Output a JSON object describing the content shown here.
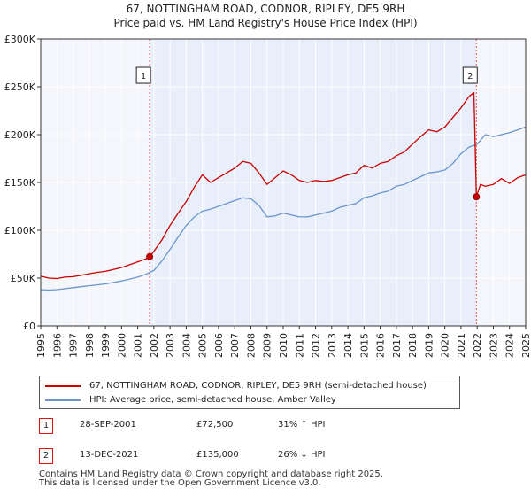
{
  "header": {
    "title_line1": "67, NOTTINGHAM ROAD, CODNOR, RIPLEY, DE5 9RH",
    "title_line2": "Price paid vs. HM Land Registry's House Price Index (HPI)"
  },
  "colors": {
    "property": "#cc0000",
    "hpi": "#6b96cc",
    "shade": "#e8eefa",
    "marker_line": "#e05050"
  },
  "chart_data": {
    "type": "line",
    "title": "Price paid vs. HM Land Registry's House Price Index (HPI)",
    "xlabel": "",
    "ylabel": "",
    "xlim": [
      1995,
      2025
    ],
    "ylim": [
      0,
      300000
    ],
    "y_ticks": [
      0,
      50000,
      100000,
      150000,
      200000,
      250000,
      300000
    ],
    "y_tick_labels": [
      "£0",
      "£50K",
      "£100K",
      "£150K",
      "£200K",
      "£250K",
      "£300K"
    ],
    "x_ticks": [
      1995,
      1996,
      1997,
      1998,
      1999,
      2000,
      2001,
      2002,
      2003,
      2004,
      2005,
      2006,
      2007,
      2008,
      2009,
      2010,
      2011,
      2012,
      2013,
      2014,
      2015,
      2016,
      2017,
      2018,
      2019,
      2020,
      2021,
      2022,
      2023,
      2024,
      2025
    ],
    "x_tick_labels": [
      "1995",
      "1996",
      "1997",
      "1998",
      "1999",
      "2000",
      "2001",
      "2002",
      "2003",
      "2004",
      "2005",
      "2006",
      "2007",
      "2008",
      "2009",
      "2010",
      "2011",
      "2012",
      "2013",
      "2014",
      "2015",
      "2016",
      "2017",
      "2018",
      "2019",
      "2020",
      "2021",
      "2022",
      "2023",
      "2024",
      "2025"
    ],
    "grid": true,
    "shaded_range": [
      2001.74,
      2021.95
    ],
    "series": [
      {
        "name": "67, NOTTINGHAM ROAD, CODNOR, RIPLEY, DE5 9RH (semi-detached house)",
        "x": [
          1995.0,
          1995.5,
          1996.0,
          1996.5,
          1997.0,
          1997.5,
          1998.0,
          1998.5,
          1999.0,
          1999.5,
          2000.0,
          2000.5,
          2001.0,
          2001.5,
          2001.74,
          2002.0,
          2002.5,
          2003.0,
          2003.5,
          2004.0,
          2004.5,
          2005.0,
          2005.5,
          2006.0,
          2006.5,
          2007.0,
          2007.5,
          2008.0,
          2008.5,
          2009.0,
          2009.5,
          2010.0,
          2010.5,
          2011.0,
          2011.5,
          2012.0,
          2012.5,
          2013.0,
          2013.5,
          2014.0,
          2014.5,
          2015.0,
          2015.5,
          2016.0,
          2016.5,
          2017.0,
          2017.5,
          2018.0,
          2018.5,
          2019.0,
          2019.5,
          2020.0,
          2020.5,
          2021.0,
          2021.5,
          2021.8,
          2021.95,
          2022.2,
          2022.5,
          2023.0,
          2023.5,
          2024.0,
          2024.5,
          2025.0
        ],
        "values": [
          52000,
          50000,
          49500,
          51000,
          51500,
          53000,
          54500,
          56000,
          57000,
          59000,
          61000,
          64000,
          67000,
          70000,
          72500,
          78000,
          90000,
          105000,
          118000,
          130000,
          145000,
          158000,
          150000,
          155000,
          160000,
          165000,
          172000,
          170000,
          160000,
          148000,
          155000,
          162000,
          158000,
          152000,
          150000,
          152000,
          151000,
          152000,
          155000,
          158000,
          160000,
          168000,
          165000,
          170000,
          172000,
          178000,
          182000,
          190000,
          198000,
          205000,
          203000,
          208000,
          218000,
          228000,
          240000,
          244000,
          135000,
          148000,
          146000,
          148000,
          154000,
          149000,
          155000,
          158000
        ]
      },
      {
        "name": "HPI: Average price, semi-detached house, Amber Valley",
        "x": [
          1995.0,
          1995.5,
          1996.0,
          1996.5,
          1997.0,
          1997.5,
          1998.0,
          1998.5,
          1999.0,
          1999.5,
          2000.0,
          2000.5,
          2001.0,
          2001.5,
          2002.0,
          2002.5,
          2003.0,
          2003.5,
          2004.0,
          2004.5,
          2005.0,
          2005.5,
          2006.0,
          2006.5,
          2007.0,
          2007.5,
          2008.0,
          2008.5,
          2009.0,
          2009.5,
          2010.0,
          2010.5,
          2011.0,
          2011.5,
          2012.0,
          2012.5,
          2013.0,
          2013.5,
          2014.0,
          2014.5,
          2015.0,
          2015.5,
          2016.0,
          2016.5,
          2017.0,
          2017.5,
          2018.0,
          2018.5,
          2019.0,
          2019.5,
          2020.0,
          2020.5,
          2021.0,
          2021.5,
          2022.0,
          2022.5,
          2023.0,
          2023.5,
          2024.0,
          2024.5,
          2025.0
        ],
        "values": [
          38000,
          37500,
          38000,
          39000,
          40000,
          41000,
          42000,
          43000,
          44000,
          45500,
          47000,
          49000,
          51000,
          54000,
          58000,
          68000,
          80000,
          93000,
          105000,
          114000,
          120000,
          122000,
          125000,
          128000,
          131000,
          134000,
          133000,
          126000,
          114000,
          115000,
          118000,
          116000,
          114000,
          114000,
          116000,
          118000,
          120000,
          124000,
          126000,
          128000,
          134000,
          136000,
          139000,
          141000,
          146000,
          148000,
          152000,
          156000,
          160000,
          161000,
          163000,
          170000,
          180000,
          187000,
          190000,
          200000,
          198000,
          200000,
          202000,
          205000,
          208000
        ]
      }
    ],
    "annotations": [
      {
        "label": "1",
        "x": 2001.74,
        "y": 72500,
        "box_y": 262000
      },
      {
        "label": "2",
        "x": 2021.95,
        "y": 135000,
        "box_y": 262000
      }
    ]
  },
  "legend": {
    "items": [
      {
        "label": "67, NOTTINGHAM ROAD, CODNOR, RIPLEY, DE5 9RH (semi-detached house)"
      },
      {
        "label": "HPI: Average price, semi-detached house, Amber Valley"
      }
    ]
  },
  "sales": [
    {
      "num": "1",
      "date": "28-SEP-2001",
      "price": "£72,500",
      "hpi": "31% ↑ HPI"
    },
    {
      "num": "2",
      "date": "13-DEC-2021",
      "price": "£135,000",
      "hpi": "26% ↓ HPI"
    }
  ],
  "footer": {
    "line1": "Contains HM Land Registry data © Crown copyright and database right 2025.",
    "line2": "This data is licensed under the Open Government Licence v3.0."
  }
}
